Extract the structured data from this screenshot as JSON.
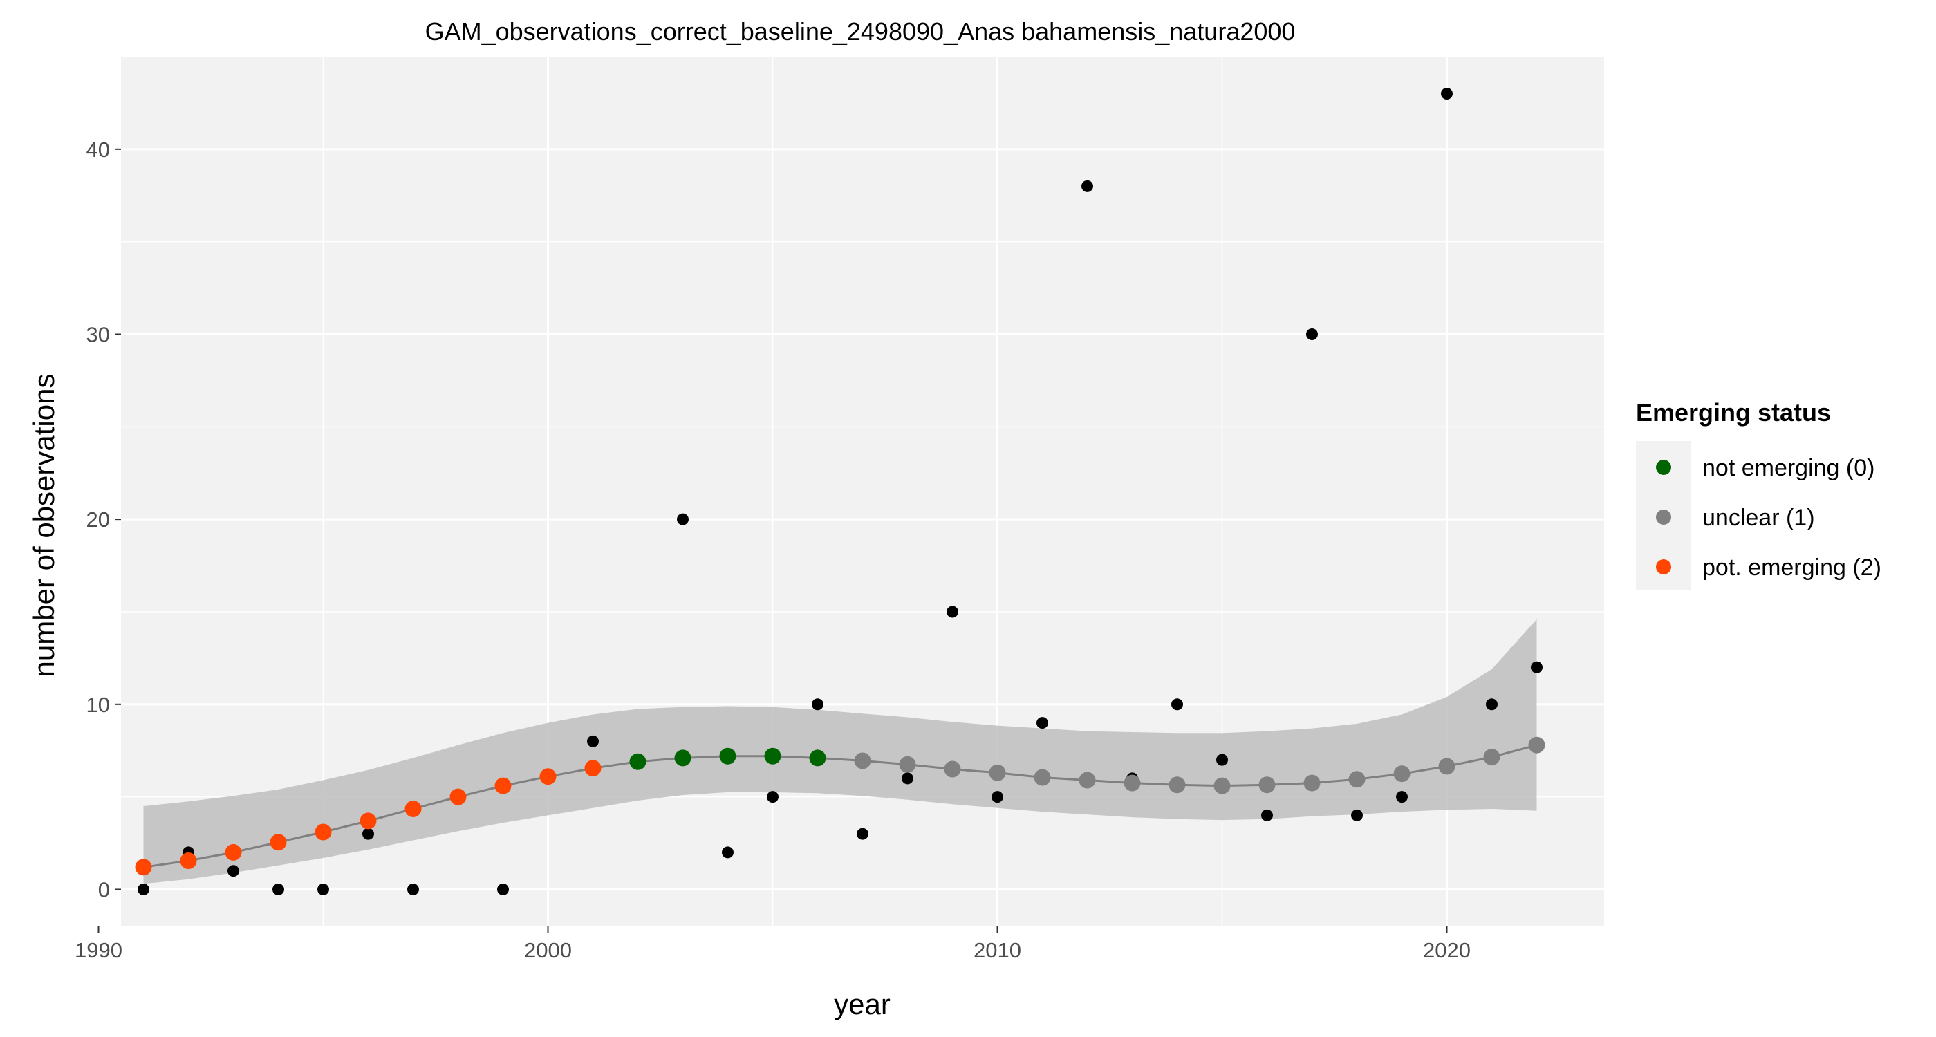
{
  "chart_data": {
    "type": "scatter",
    "title": "GAM_observations_correct_baseline_2498090_Anas bahamensis_natura2000",
    "xlabel": "year",
    "ylabel": "number of observations",
    "xlim": [
      1990.5,
      2023.5
    ],
    "ylim": [
      -2,
      45
    ],
    "x_ticks": [
      1990,
      2000,
      2010,
      2020
    ],
    "y_ticks": [
      0,
      10,
      20,
      30,
      40
    ],
    "grid": true,
    "legend": {
      "title": "Emerging status",
      "placement": "right",
      "entries": [
        {
          "label": "not emerging (0)",
          "color": "#006400"
        },
        {
          "label": "unclear (1)",
          "color": "#808080"
        },
        {
          "label": "pot. emerging (2)",
          "color": "#FF4500"
        }
      ]
    },
    "observations": {
      "color": "#000000",
      "points": [
        {
          "x": 1991,
          "y": 0
        },
        {
          "x": 1992,
          "y": 2
        },
        {
          "x": 1993,
          "y": 1
        },
        {
          "x": 1994,
          "y": 0
        },
        {
          "x": 1995,
          "y": 0
        },
        {
          "x": 1996,
          "y": 3
        },
        {
          "x": 1997,
          "y": 0
        },
        {
          "x": 1999,
          "y": 0
        },
        {
          "x": 2001,
          "y": 8
        },
        {
          "x": 2002,
          "y": 7
        },
        {
          "x": 2003,
          "y": 20
        },
        {
          "x": 2004,
          "y": 2
        },
        {
          "x": 2005,
          "y": 5
        },
        {
          "x": 2006,
          "y": 10
        },
        {
          "x": 2007,
          "y": 3
        },
        {
          "x": 2008,
          "y": 6
        },
        {
          "x": 2009,
          "y": 15
        },
        {
          "x": 2010,
          "y": 5
        },
        {
          "x": 2011,
          "y": 9
        },
        {
          "x": 2012,
          "y": 38
        },
        {
          "x": 2013,
          "y": 6
        },
        {
          "x": 2014,
          "y": 10
        },
        {
          "x": 2015,
          "y": 7
        },
        {
          "x": 2016,
          "y": 4
        },
        {
          "x": 2017,
          "y": 30
        },
        {
          "x": 2018,
          "y": 4
        },
        {
          "x": 2019,
          "y": 5
        },
        {
          "x": 2020,
          "y": 43
        },
        {
          "x": 2021,
          "y": 10
        },
        {
          "x": 2022,
          "y": 12
        }
      ]
    },
    "gam_fit": {
      "line_color": "#808080",
      "band_color": "#BEBEBE",
      "points": [
        {
          "x": 1991,
          "y": 1.2,
          "lower": 0.3,
          "upper": 4.5,
          "status": 2
        },
        {
          "x": 1992,
          "y": 1.55,
          "lower": 0.55,
          "upper": 4.75,
          "status": 2
        },
        {
          "x": 1993,
          "y": 2.0,
          "lower": 0.9,
          "upper": 5.05,
          "status": 2
        },
        {
          "x": 1994,
          "y": 2.55,
          "lower": 1.3,
          "upper": 5.4,
          "status": 2
        },
        {
          "x": 1995,
          "y": 3.1,
          "lower": 1.7,
          "upper": 5.9,
          "status": 2
        },
        {
          "x": 1996,
          "y": 3.7,
          "lower": 2.15,
          "upper": 6.45,
          "status": 2
        },
        {
          "x": 1997,
          "y": 4.35,
          "lower": 2.65,
          "upper": 7.1,
          "status": 2
        },
        {
          "x": 1998,
          "y": 5.0,
          "lower": 3.15,
          "upper": 7.8,
          "status": 2
        },
        {
          "x": 1999,
          "y": 5.6,
          "lower": 3.6,
          "upper": 8.45,
          "status": 2
        },
        {
          "x": 2000,
          "y": 6.1,
          "lower": 4.0,
          "upper": 9.0,
          "status": 2
        },
        {
          "x": 2001,
          "y": 6.55,
          "lower": 4.4,
          "upper": 9.45,
          "status": 2
        },
        {
          "x": 2002,
          "y": 6.9,
          "lower": 4.8,
          "upper": 9.75,
          "status": 0
        },
        {
          "x": 2003,
          "y": 7.1,
          "lower": 5.1,
          "upper": 9.85,
          "status": 0
        },
        {
          "x": 2004,
          "y": 7.2,
          "lower": 5.25,
          "upper": 9.9,
          "status": 0
        },
        {
          "x": 2005,
          "y": 7.2,
          "lower": 5.25,
          "upper": 9.85,
          "status": 0
        },
        {
          "x": 2006,
          "y": 7.1,
          "lower": 5.2,
          "upper": 9.7,
          "status": 0
        },
        {
          "x": 2007,
          "y": 6.95,
          "lower": 5.05,
          "upper": 9.5,
          "status": 1
        },
        {
          "x": 2008,
          "y": 6.75,
          "lower": 4.85,
          "upper": 9.3,
          "status": 1
        },
        {
          "x": 2009,
          "y": 6.5,
          "lower": 4.6,
          "upper": 9.05,
          "status": 1
        },
        {
          "x": 2010,
          "y": 6.3,
          "lower": 4.4,
          "upper": 8.85,
          "status": 1
        },
        {
          "x": 2011,
          "y": 6.05,
          "lower": 4.2,
          "upper": 8.7,
          "status": 1
        },
        {
          "x": 2012,
          "y": 5.9,
          "lower": 4.05,
          "upper": 8.55,
          "status": 1
        },
        {
          "x": 2013,
          "y": 5.75,
          "lower": 3.9,
          "upper": 8.5,
          "status": 1
        },
        {
          "x": 2014,
          "y": 5.65,
          "lower": 3.8,
          "upper": 8.45,
          "status": 1
        },
        {
          "x": 2015,
          "y": 5.6,
          "lower": 3.75,
          "upper": 8.45,
          "status": 1
        },
        {
          "x": 2016,
          "y": 5.65,
          "lower": 3.8,
          "upper": 8.55,
          "status": 1
        },
        {
          "x": 2017,
          "y": 5.75,
          "lower": 3.95,
          "upper": 8.7,
          "status": 1
        },
        {
          "x": 2018,
          "y": 5.95,
          "lower": 4.05,
          "upper": 8.95,
          "status": 1
        },
        {
          "x": 2019,
          "y": 6.25,
          "lower": 4.2,
          "upper": 9.45,
          "status": 1
        },
        {
          "x": 2020,
          "y": 6.65,
          "lower": 4.3,
          "upper": 10.4,
          "status": 1
        },
        {
          "x": 2021,
          "y": 7.15,
          "lower": 4.35,
          "upper": 11.9,
          "status": 1
        },
        {
          "x": 2022,
          "y": 7.8,
          "lower": 4.25,
          "upper": 14.6,
          "status": 1
        }
      ]
    }
  }
}
